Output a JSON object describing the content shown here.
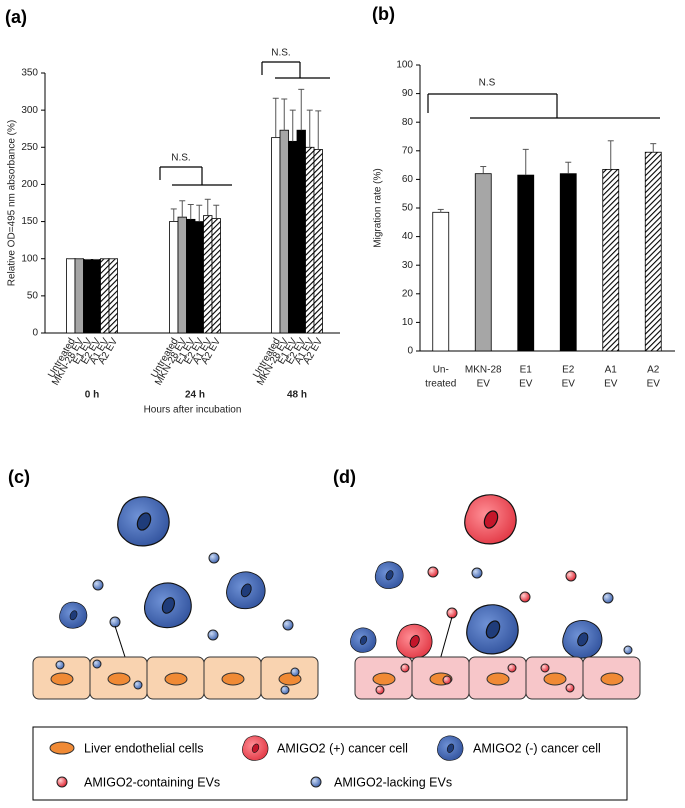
{
  "chart_data": [
    {
      "type": "bar",
      "panel_label": "(a)",
      "y_label": "Relative OD=495 nm absorbance (%)",
      "x_label": "Hours after incubation",
      "categories": [
        "0 h",
        "24 h",
        "48 h"
      ],
      "series": [
        {
          "name": "Untreated",
          "color": "#ffffff",
          "hatch": false,
          "values": [
            100,
            150,
            263
          ],
          "errors": [
            0,
            17,
            53
          ]
        },
        {
          "name": "MKN-28 EV",
          "color": "#a6a6a6",
          "hatch": false,
          "values": [
            100,
            156,
            273
          ],
          "errors": [
            0,
            22,
            42
          ]
        },
        {
          "name": "E1 EV",
          "color": "#000000",
          "hatch": false,
          "values": [
            99,
            153,
            258
          ],
          "errors": [
            0,
            20,
            42
          ]
        },
        {
          "name": "E2 EV",
          "color": "#000000",
          "hatch": false,
          "values": [
            99,
            150,
            273
          ],
          "errors": [
            0,
            22,
            55
          ]
        },
        {
          "name": "A1 EV",
          "color": "#ffffff",
          "hatch": true,
          "values": [
            100,
            158,
            250
          ],
          "errors": [
            0,
            22,
            50
          ]
        },
        {
          "name": "A2 EV",
          "color": "#ffffff",
          "hatch": true,
          "values": [
            100,
            154,
            247
          ],
          "errors": [
            0,
            18,
            52
          ]
        }
      ],
      "ylim": [
        0,
        350
      ],
      "yticks": [
        0,
        50,
        100,
        150,
        200,
        250,
        300,
        350
      ],
      "annotations": [
        "N.S.",
        "N.S."
      ]
    },
    {
      "type": "bar",
      "panel_label": "(b)",
      "y_label": "Migration rate (%)",
      "categories": [
        [
          "Un-",
          "treated"
        ],
        [
          "MKN-28",
          "EV"
        ],
        [
          "E1",
          "EV"
        ],
        [
          "E2",
          "EV"
        ],
        [
          "A1",
          "EV"
        ],
        [
          "A2",
          "EV"
        ]
      ],
      "values": [
        48.5,
        62,
        61.5,
        62,
        63.5,
        69.5
      ],
      "errors": [
        1,
        2.5,
        9,
        4,
        10,
        3
      ],
      "colors": [
        "#ffffff",
        "#a6a6a6",
        "#000000",
        "#000000",
        "#ffffff",
        "#ffffff"
      ],
      "hatch": [
        false,
        false,
        false,
        false,
        true,
        true
      ],
      "ylim": [
        0,
        100
      ],
      "yticks": [
        0,
        10,
        20,
        30,
        40,
        50,
        60,
        70,
        80,
        90,
        100
      ],
      "annotations": [
        "N.S"
      ]
    }
  ],
  "diagrams": [
    {
      "label": "(c)"
    },
    {
      "label": "(d)"
    }
  ],
  "legend": {
    "items": [
      "Liver endothelial cells",
      "AMIGO2 (+) cancer cell",
      "AMIGO2 (-) cancer cell",
      "AMIGO2-containing EVs",
      "AMIGO2-lacking EVs"
    ]
  }
}
